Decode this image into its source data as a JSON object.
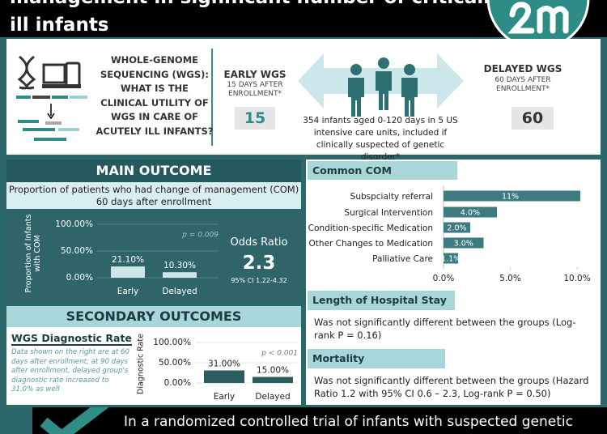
{
  "header": {
    "title_lines": [
      "management in significant number of critically",
      "ill infants"
    ]
  },
  "design": {
    "question": "WHOLE-GENOME SEQUENCING (WGS): WHAT IS THE CLINICAL UTILITY OF WGS IN CARE OF ACUTELY ILL INFANTS?",
    "early": {
      "title": "EARLY WGS",
      "timing": "15 DAYS AFTER ENROLLMENT*",
      "days": 15
    },
    "population": "354 infants aged 0-120 days in 5 US intensive care units, included if clinically suspected of genetic disorder*",
    "delayed": {
      "title": "DELAYED WGS",
      "timing": "60 DAYS AFTER ENROLLMENT*",
      "days": 60
    }
  },
  "main_outcome": {
    "title": "MAIN OUTCOME",
    "description": "Proportion of patients who had change of management (COM) 60 days after enrollment",
    "chart": {
      "type": "bar",
      "y_label": "Proportion of Infants with COM",
      "categories": [
        "Early",
        "Delayed"
      ],
      "values": [
        21.1,
        10.3
      ],
      "value_labels": [
        "21.10%",
        "10.30%"
      ],
      "color": "#cfe6e8",
      "ylim": [
        0,
        100
      ],
      "yticks": [
        {
          "value": 0,
          "label": "0.00%"
        },
        {
          "value": 50,
          "label": "50.00%"
        },
        {
          "value": 100,
          "label": "100.00%"
        }
      ],
      "annotation": "p = 0.009"
    },
    "odds_ratio": {
      "label": "Odds Ratio",
      "value": 2.3,
      "ci": "95% CI 1.22-4.32"
    }
  },
  "secondary": {
    "title": "SECONDARY OUTCOMES",
    "diagnostic": {
      "title": "WGS Diagnostic Rate",
      "note": "Data shown on the right are at 60 days after enrollment; at 90 days after enrollment, delayed group's diagnostic rate increased to 31.0% as well",
      "chart": {
        "type": "bar",
        "y_label": "Diagnostic Rate",
        "categories": [
          "Early",
          "Delayed"
        ],
        "values": [
          31.0,
          15.0
        ],
        "value_labels": [
          "31.00%",
          "15.00%"
        ],
        "color": "#2a5c60",
        "ylim": [
          0,
          100
        ],
        "yticks": [
          {
            "value": 0,
            "label": "0.00%"
          },
          {
            "value": 50,
            "label": "50.00%"
          },
          {
            "value": 100,
            "label": "100.00%"
          }
        ],
        "annotation": "p < 0.001"
      }
    }
  },
  "common_com": {
    "title": "Common COM",
    "chart": {
      "type": "hbar",
      "categories": [
        "Subspcialty referral",
        "Surgical Intervention",
        "Condition-specific Medication",
        "Other Changes to Medication",
        "Palliative Care"
      ],
      "values": [
        11,
        4.0,
        2.0,
        3.0,
        1.1
      ],
      "value_labels": [
        "11%",
        "4.0%",
        "2.0%",
        "3.0%",
        "1.1%"
      ],
      "color": "#3d7b80",
      "xlim": [
        0,
        10
      ],
      "xticks": [
        {
          "value": 0,
          "label": "0.0%"
        },
        {
          "value": 5,
          "label": "5.0%"
        },
        {
          "value": 10,
          "label": "10.0%"
        }
      ]
    }
  },
  "length_of_stay": {
    "title": "Length of Hospital Stay",
    "text": "Was not significantly different between the groups (Log-rank P = 0.16)"
  },
  "mortality": {
    "title": "Mortality",
    "text": "Was not significantly different between the groups (Hazard Ratio 1.2 with 95% CI 0.6 – 2.3, Log-rank P = 0.50)"
  },
  "footer": {
    "text": "In a randomized controlled trial of infants with suspected genetic"
  }
}
